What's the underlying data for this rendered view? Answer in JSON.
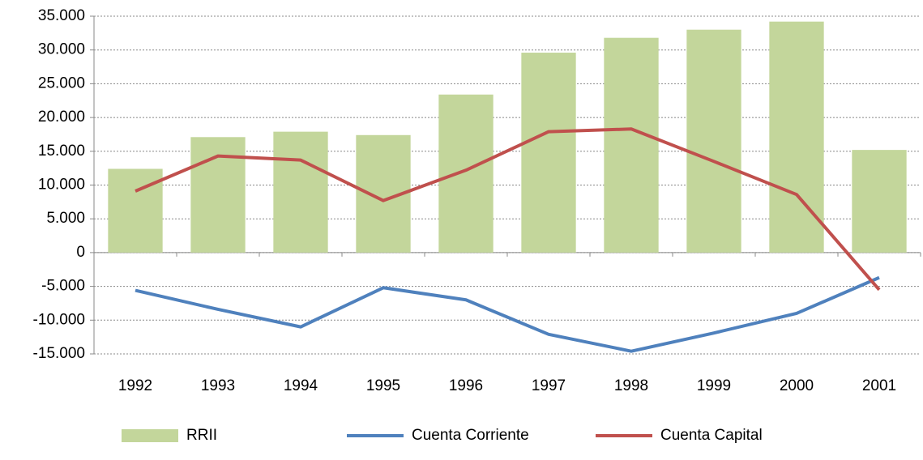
{
  "chart_data": {
    "type": "bar",
    "categories": [
      "1992",
      "1993",
      "1994",
      "1995",
      "1996",
      "1997",
      "1998",
      "1999",
      "2000",
      "2001"
    ],
    "series": [
      {
        "name": "RRII",
        "type": "bar",
        "color": "#c3d69b",
        "values": [
          12400,
          17100,
          17900,
          17400,
          23400,
          29600,
          31800,
          33000,
          34200,
          15200
        ]
      },
      {
        "name": "Cuenta Corriente",
        "type": "line",
        "color": "#4f81bd",
        "values": [
          -5600,
          -8400,
          -11000,
          -5200,
          -7000,
          -12100,
          -14600,
          -11900,
          -9000,
          -3700
        ]
      },
      {
        "name": "Cuenta Capital",
        "type": "line",
        "color": "#c0504d",
        "values": [
          9100,
          14300,
          13700,
          7700,
          12200,
          17900,
          18300,
          13500,
          8600,
          -5500
        ]
      }
    ],
    "ylim": [
      -15000,
      35000
    ],
    "yticks": [
      {
        "value": -15000,
        "label": "-15.000"
      },
      {
        "value": -10000,
        "label": "-10.000"
      },
      {
        "value": -5000,
        "label": "-5.000"
      },
      0,
      {
        "value": 5000,
        "label": "5.000"
      },
      {
        "value": 10000,
        "label": "10.000"
      },
      {
        "value": 15000,
        "label": "15.000"
      },
      {
        "value": 20000,
        "label": "20.000"
      },
      {
        "value": 25000,
        "label": "25.000"
      },
      {
        "value": 30000,
        "label": "30.000"
      },
      {
        "value": 35000,
        "label": "35.000"
      }
    ],
    "grid": true,
    "legend": "bottom"
  }
}
